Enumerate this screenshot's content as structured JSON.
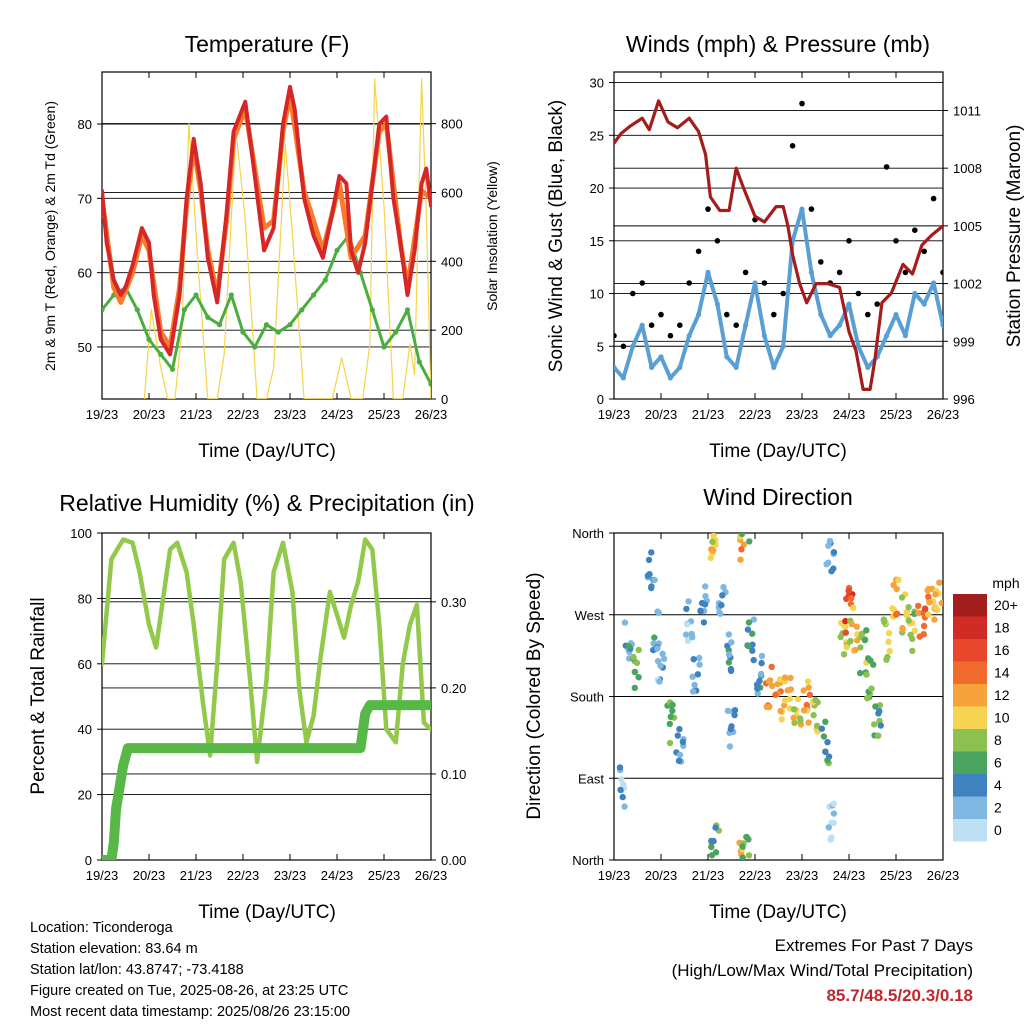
{
  "x_ticks": [
    "19/23",
    "20/23",
    "21/23",
    "22/23",
    "23/23",
    "24/23",
    "25/23",
    "26/23"
  ],
  "xlabel": "Time (Day/UTC)",
  "colors": {
    "temp2m": "#d62728",
    "temp9m": "#f97a2a",
    "dewpoint": "#4bad3f",
    "solar": "#f5d44a",
    "wind": "#5a9fd4",
    "gust": "#000000",
    "pressure": "#a51c1c",
    "rh": "#92c94a",
    "precip": "#57b848"
  },
  "chart_data": [
    {
      "id": "temperature",
      "type": "line",
      "title": "Temperature (F)",
      "xlabel": "Time (Day/UTC)",
      "ylabel": "2m & 9m T (Red, Orange) & 2m Td (Green)",
      "y2label": "Solar Insolation (Yellow)",
      "ylim": [
        43,
        87
      ],
      "y_ticks": [
        50,
        60,
        70,
        80
      ],
      "y2lim": [
        0,
        950
      ],
      "y2_ticks": [
        0,
        200,
        400,
        600,
        800
      ],
      "x_range_days": [
        0,
        7
      ],
      "series": [
        {
          "axis": "left",
          "color": "temp2m",
          "x": [
            0,
            0.1,
            0.25,
            0.4,
            0.5,
            0.65,
            0.85,
            1.0,
            1.1,
            1.25,
            1.45,
            1.65,
            1.8,
            1.95,
            2.1,
            2.25,
            2.45,
            2.65,
            2.8,
            3.05,
            3.25,
            3.45,
            3.65,
            3.85,
            4.0,
            4.1,
            4.3,
            4.5,
            4.7,
            4.9,
            5.05,
            5.2,
            5.3,
            5.45,
            5.6,
            5.75,
            5.9,
            6.05,
            6.2,
            6.35,
            6.5,
            6.65,
            6.8,
            6.9,
            7.0
          ],
          "y": [
            71,
            64,
            59,
            57,
            58,
            61,
            66,
            64,
            57,
            51,
            49,
            57,
            70,
            78,
            72,
            62,
            56,
            68,
            79,
            83,
            73,
            63,
            66,
            80,
            85,
            82,
            70,
            65,
            62,
            68,
            73,
            72,
            63,
            60,
            64,
            72,
            80,
            81,
            70,
            64,
            57,
            63,
            72,
            74,
            69
          ]
        },
        {
          "axis": "left",
          "color": "temp9m",
          "x": [
            0,
            0.25,
            0.4,
            0.65,
            0.85,
            1.0,
            1.25,
            1.45,
            1.65,
            1.8,
            1.95,
            2.1,
            2.25,
            2.45,
            2.65,
            2.8,
            3.05,
            3.25,
            3.45,
            3.65,
            3.85,
            4.0,
            4.3,
            4.7,
            4.9,
            5.05,
            5.3,
            5.6,
            5.9,
            6.05,
            6.35,
            6.5,
            6.8,
            7.0
          ],
          "y": [
            70,
            58,
            56,
            60,
            65,
            63,
            52,
            50,
            58,
            69,
            77,
            71,
            63,
            57,
            67,
            78,
            82,
            74,
            66,
            67,
            79,
            84,
            71,
            63,
            68,
            72,
            62,
            65,
            79,
            80,
            64,
            58,
            71,
            70
          ]
        },
        {
          "axis": "left",
          "color": "dewpoint",
          "x": [
            0,
            0.25,
            0.5,
            0.75,
            1.0,
            1.25,
            1.5,
            1.75,
            2.0,
            2.25,
            2.5,
            2.75,
            3.0,
            3.25,
            3.5,
            3.75,
            4.0,
            4.25,
            4.5,
            4.75,
            5.0,
            5.25,
            5.5,
            5.75,
            6.0,
            6.25,
            6.5,
            6.75,
            7.0
          ],
          "y": [
            55,
            57,
            58,
            55,
            51,
            49,
            47,
            55,
            57,
            54,
            53,
            57,
            52,
            50,
            53,
            52,
            53,
            55,
            57,
            59,
            63,
            65,
            60,
            55,
            50,
            52,
            55,
            48,
            45
          ]
        },
        {
          "axis": "right",
          "color": "solar",
          "x": [
            0.9,
            1.05,
            1.25,
            1.4,
            1.55,
            1.7,
            1.85,
            2.05,
            2.25,
            2.45,
            2.6,
            2.85,
            3.05,
            3.3,
            3.5,
            3.65,
            3.9,
            4.05,
            4.3,
            4.5,
            4.65,
            4.9,
            5.1,
            5.3,
            5.55,
            5.7,
            5.8,
            6.0,
            6.2,
            6.4,
            6.55,
            6.65,
            6.8,
            6.9,
            7.0
          ],
          "y": [
            0,
            260,
            90,
            0,
            0,
            200,
            800,
            380,
            0,
            0,
            130,
            780,
            520,
            0,
            0,
            90,
            740,
            480,
            0,
            0,
            0,
            0,
            120,
            0,
            0,
            160,
            930,
            560,
            0,
            0,
            160,
            70,
            930,
            540,
            0
          ]
        }
      ]
    },
    {
      "id": "winds",
      "type": "line",
      "title": "Winds (mph) & Pressure (mb)",
      "xlabel": "Time (Day/UTC)",
      "ylabel": "Sonic Wind & Gust (Blue, Black)",
      "y2label": "Station Pressure (Maroon)",
      "ylim": [
        0,
        31
      ],
      "y_ticks": [
        0,
        5,
        10,
        15,
        20,
        25,
        30
      ],
      "y2lim": [
        996,
        1013
      ],
      "y2_ticks": [
        996,
        999,
        1002,
        1005,
        1008,
        1011
      ],
      "x_range_days": [
        0,
        7
      ],
      "series": [
        {
          "axis": "right",
          "color": "pressure",
          "x": [
            0,
            0.15,
            0.35,
            0.6,
            0.75,
            0.95,
            1.15,
            1.35,
            1.6,
            1.8,
            1.95,
            2.05,
            2.25,
            2.45,
            2.6,
            2.75,
            3.0,
            3.2,
            3.45,
            3.6,
            3.7,
            3.8,
            3.95,
            4.1,
            4.3,
            4.55,
            4.8,
            5.0,
            5.15,
            5.3,
            5.45,
            5.55,
            5.7,
            5.9,
            6.15,
            6.35,
            6.55,
            6.75,
            7.0
          ],
          "y": [
            1009.3,
            1009.8,
            1010.2,
            1010.6,
            1010.0,
            1011.5,
            1010.4,
            1010.1,
            1010.6,
            1009.9,
            1008.7,
            1006.5,
            1005.8,
            1005.8,
            1008.0,
            1007.0,
            1005.5,
            1005.2,
            1006.0,
            1006.0,
            1005.0,
            1003.5,
            1002.0,
            1001.0,
            1002.0,
            1002.0,
            1001.8,
            999.5,
            998.5,
            996.5,
            996.5,
            998.0,
            1001.0,
            1001.5,
            1003.0,
            1002.5,
            1004.0,
            1004.5,
            1005.0
          ]
        },
        {
          "axis": "left",
          "color": "wind",
          "x": [
            0,
            0.2,
            0.4,
            0.6,
            0.8,
            1.0,
            1.2,
            1.4,
            1.6,
            1.8,
            2.0,
            2.2,
            2.4,
            2.6,
            2.8,
            3.0,
            3.2,
            3.4,
            3.6,
            3.8,
            4.0,
            4.2,
            4.4,
            4.6,
            4.8,
            5.0,
            5.2,
            5.4,
            5.6,
            5.8,
            6.0,
            6.2,
            6.4,
            6.6,
            6.8,
            7.0
          ],
          "y": [
            3,
            2,
            5,
            7,
            3,
            4,
            2,
            3,
            6,
            8,
            12,
            9,
            4,
            3,
            7,
            11,
            6,
            3,
            5,
            15,
            18,
            12,
            8,
            6,
            7,
            9,
            5,
            3,
            4,
            6,
            8,
            6,
            10,
            9,
            11,
            7
          ]
        },
        {
          "axis": "left",
          "color": "gust",
          "x": [
            0,
            0.2,
            0.4,
            0.6,
            0.8,
            1.0,
            1.2,
            1.4,
            1.6,
            1.8,
            2.0,
            2.2,
            2.4,
            2.6,
            2.8,
            3.0,
            3.2,
            3.4,
            3.6,
            3.8,
            4.0,
            4.2,
            4.4,
            4.6,
            4.8,
            5.0,
            5.2,
            5.4,
            5.6,
            5.8,
            6.0,
            6.2,
            6.4,
            6.6,
            6.8,
            7.0
          ],
          "y": [
            6,
            5,
            10,
            11,
            7,
            8,
            6,
            7,
            11,
            14,
            18,
            15,
            8,
            7,
            12,
            17,
            11,
            8,
            10,
            24,
            28,
            18,
            13,
            11,
            12,
            15,
            10,
            8,
            9,
            22,
            15,
            12,
            16,
            14,
            19,
            12
          ]
        }
      ]
    },
    {
      "id": "humidity",
      "type": "line",
      "title": "Relative Humidity (%) & Precipitation (in)",
      "xlabel": "Time (Day/UTC)",
      "ylabel": "Percent & Total Rainfall",
      "ylim": [
        0,
        100
      ],
      "y_ticks": [
        0,
        20,
        40,
        60,
        80,
        100
      ],
      "y2lim": [
        0,
        0.38
      ],
      "y2_ticks": [
        "0.00",
        "0.10",
        "0.20",
        "0.30"
      ],
      "x_range_days": [
        0,
        7
      ],
      "series": [
        {
          "axis": "left",
          "color": "rh",
          "x": [
            0,
            0.2,
            0.45,
            0.65,
            0.8,
            1.0,
            1.15,
            1.3,
            1.45,
            1.6,
            1.8,
            1.95,
            2.15,
            2.3,
            2.45,
            2.6,
            2.8,
            2.95,
            3.15,
            3.3,
            3.5,
            3.65,
            3.85,
            4.05,
            4.2,
            4.35,
            4.5,
            4.65,
            4.85,
            5.0,
            5.15,
            5.3,
            5.45,
            5.6,
            5.75,
            5.9,
            6.05,
            6.25,
            6.4,
            6.55,
            6.7,
            6.85,
            7.0
          ],
          "y": [
            60,
            92,
            98,
            97,
            88,
            72,
            65,
            80,
            95,
            97,
            88,
            72,
            48,
            32,
            60,
            92,
            97,
            85,
            55,
            30,
            55,
            88,
            97,
            82,
            52,
            36,
            44,
            62,
            82,
            75,
            68,
            78,
            85,
            98,
            95,
            72,
            40,
            36,
            60,
            72,
            78,
            42,
            40
          ]
        },
        {
          "axis": "right",
          "color": "precip",
          "x": [
            0,
            0.2,
            0.25,
            0.3,
            0.45,
            0.55,
            0.7,
            5.5,
            5.6,
            5.7,
            7.0
          ],
          "y": [
            0,
            0,
            0.02,
            0.06,
            0.11,
            0.13,
            0.13,
            0.13,
            0.17,
            0.18,
            0.18
          ]
        }
      ]
    },
    {
      "id": "wind_direction",
      "type": "scatter",
      "title": "Wind Direction",
      "xlabel": "Time (Day/UTC)",
      "ylabel": "Direction (Colored By Speed)",
      "y_ticks": [
        "North",
        "East",
        "South",
        "West",
        "North"
      ],
      "ylim": [
        0,
        360
      ],
      "x_range_days": [
        0,
        7
      ],
      "legend": {
        "title": "mph",
        "labels": [
          "20+",
          "18",
          "16",
          "14",
          "12",
          "10",
          "8",
          "6",
          "4",
          "2",
          "0"
        ],
        "colors": [
          "#a31d1d",
          "#d12b26",
          "#e8472b",
          "#f26b2e",
          "#f7a33b",
          "#f4d450",
          "#8cc152",
          "#4aa460",
          "#3f82c0",
          "#7fb7e3",
          "#bde0f5"
        ]
      },
      "clusters": [
        {
          "x": 0.2,
          "dir": 80,
          "speed": 2
        },
        {
          "x": 0.3,
          "dir": 240,
          "speed": 4
        },
        {
          "x": 0.45,
          "dir": 210,
          "speed": 7
        },
        {
          "x": 0.8,
          "dir": 320,
          "speed": 3
        },
        {
          "x": 0.9,
          "dir": 255,
          "speed": 4
        },
        {
          "x": 1.0,
          "dir": 220,
          "speed": 2
        },
        {
          "x": 1.2,
          "dir": 150,
          "speed": 6
        },
        {
          "x": 1.4,
          "dir": 125,
          "speed": 4
        },
        {
          "x": 1.6,
          "dir": 265,
          "speed": 2
        },
        {
          "x": 1.75,
          "dir": 200,
          "speed": 3
        },
        {
          "x": 1.9,
          "dir": 280,
          "speed": 3
        },
        {
          "x": 2.1,
          "dir": 355,
          "speed": 11
        },
        {
          "x": 2.15,
          "dir": 15,
          "speed": 6
        },
        {
          "x": 2.3,
          "dir": 290,
          "speed": 3
        },
        {
          "x": 2.45,
          "dir": 230,
          "speed": 4
        },
        {
          "x": 2.5,
          "dir": 150,
          "speed": 3
        },
        {
          "x": 2.75,
          "dir": 355,
          "speed": 12
        },
        {
          "x": 2.8,
          "dir": 15,
          "speed": 7
        },
        {
          "x": 2.9,
          "dir": 245,
          "speed": 4
        },
        {
          "x": 3.1,
          "dir": 200,
          "speed": 4
        },
        {
          "x": 3.3,
          "dir": 190,
          "speed": 14
        },
        {
          "x": 3.5,
          "dir": 175,
          "speed": 12
        },
        {
          "x": 3.7,
          "dir": 185,
          "speed": 11
        },
        {
          "x": 3.9,
          "dir": 170,
          "speed": 10
        },
        {
          "x": 4.1,
          "dir": 175,
          "speed": 12
        },
        {
          "x": 4.3,
          "dir": 160,
          "speed": 8
        },
        {
          "x": 4.5,
          "dir": 130,
          "speed": 6
        },
        {
          "x": 4.6,
          "dir": 340,
          "speed": 3
        },
        {
          "x": 4.65,
          "dir": 40,
          "speed": 1
        },
        {
          "x": 4.9,
          "dir": 240,
          "speed": 9
        },
        {
          "x": 5.0,
          "dir": 275,
          "speed": 16
        },
        {
          "x": 5.1,
          "dir": 255,
          "speed": 10
        },
        {
          "x": 5.3,
          "dir": 230,
          "speed": 8
        },
        {
          "x": 5.45,
          "dir": 200,
          "speed": 7
        },
        {
          "x": 5.6,
          "dir": 150,
          "speed": 6
        },
        {
          "x": 5.8,
          "dir": 245,
          "speed": 9
        },
        {
          "x": 6.0,
          "dir": 285,
          "speed": 12
        },
        {
          "x": 6.2,
          "dir": 270,
          "speed": 10
        },
        {
          "x": 6.35,
          "dir": 250,
          "speed": 8
        },
        {
          "x": 6.55,
          "dir": 265,
          "speed": 14
        },
        {
          "x": 6.75,
          "dir": 280,
          "speed": 12
        },
        {
          "x": 6.9,
          "dir": 300,
          "speed": 11
        }
      ]
    }
  ],
  "info": {
    "location": "Location: Ticonderoga",
    "elevation": "Station elevation: 83.64 m",
    "latlon": "Station lat/lon: 43.8747; -73.4188",
    "created": "Figure created on Tue, 2025-08-26, at 23:25 UTC",
    "recent": "Most recent data timestamp: 2025/08/26 23:15:00"
  },
  "extremes": {
    "title": "Extremes For Past 7 Days",
    "subtitle": "(High/Low/Max Wind/Total Precipitation)",
    "values": "85.7/48.5/20.3/0.18"
  }
}
